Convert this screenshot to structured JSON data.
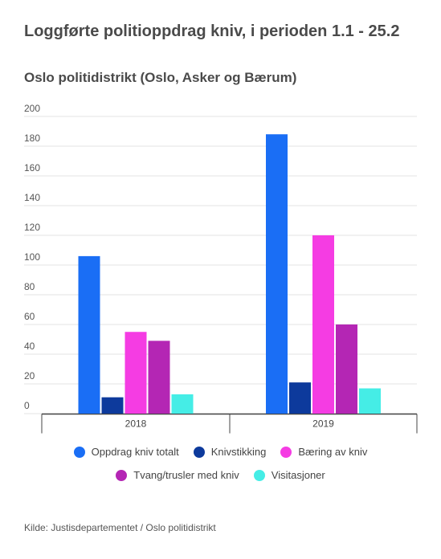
{
  "title": "Loggførte politioppdrag kniv, i perioden 1.1 - 25.2",
  "subtitle": "Oslo politidistrikt (Oslo, Asker og Bærum)",
  "source": "Kilde: Justisdepartementet / Oslo politidistrikt",
  "chart_data": {
    "type": "bar",
    "categories": [
      "2018",
      "2019"
    ],
    "ylim": [
      0,
      200
    ],
    "yticks": [
      0,
      20,
      40,
      60,
      80,
      100,
      120,
      140,
      160,
      180,
      200
    ],
    "grid": true,
    "legend_position": "bottom",
    "series": [
      {
        "name": "Oppdrag kniv totalt",
        "color": "#1a6ef5",
        "values": [
          106,
          188
        ]
      },
      {
        "name": "Knivstikking",
        "color": "#0d3a9c",
        "values": [
          11,
          21
        ]
      },
      {
        "name": "Bæring av kniv",
        "color": "#f53ce3",
        "values": [
          55,
          120
        ]
      },
      {
        "name": "Tvang/trusler med kniv",
        "color": "#b426b4",
        "values": [
          49,
          60
        ]
      },
      {
        "name": "Visitasjoner",
        "color": "#45ede6",
        "values": [
          13,
          17
        ]
      }
    ]
  }
}
